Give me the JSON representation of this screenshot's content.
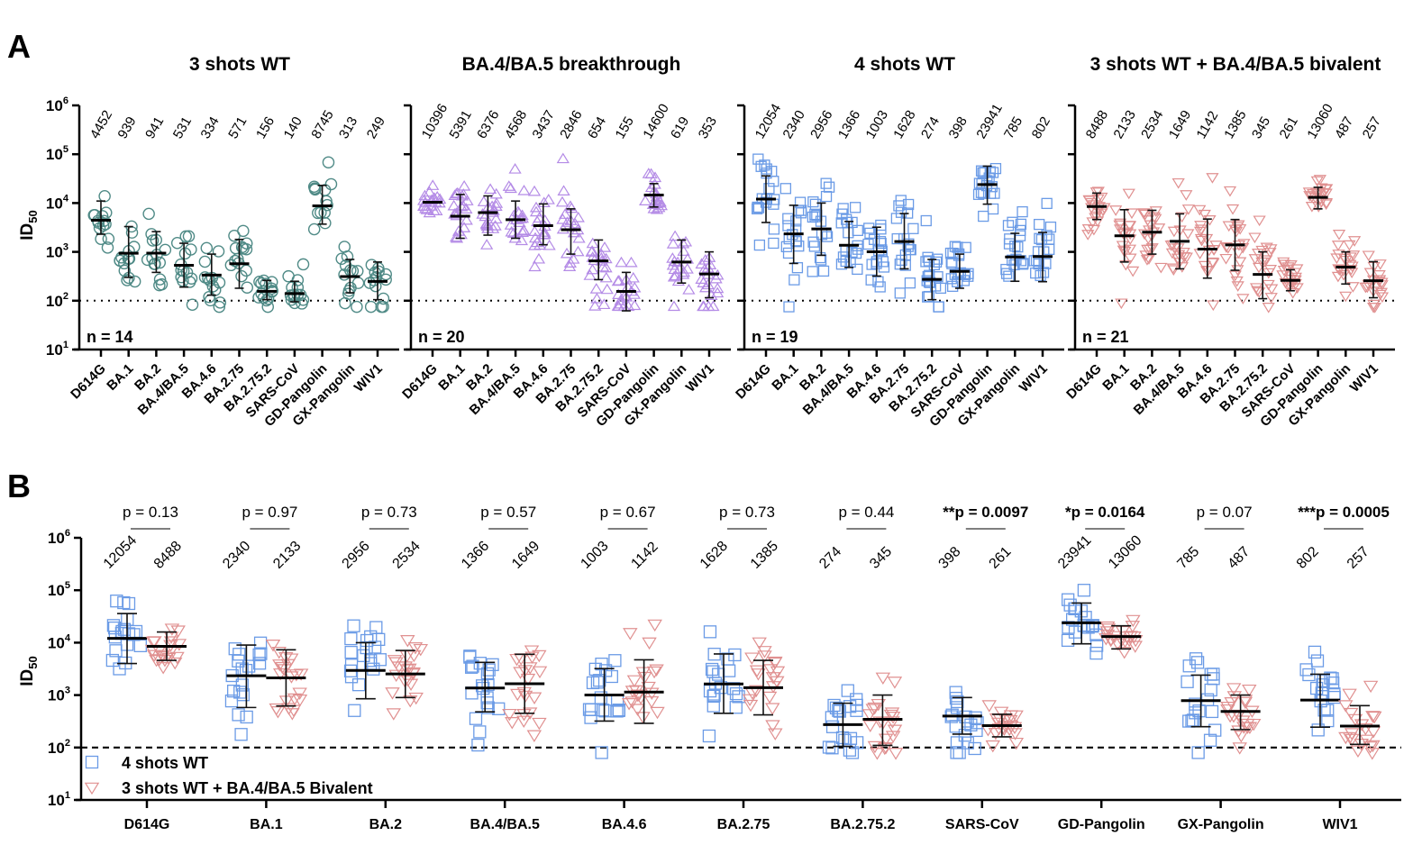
{
  "chart_data": [
    {
      "type": "scatter",
      "panel_label": "A",
      "ylabel": "ID50",
      "yscale": "log10",
      "ylim": [
        10,
        1000000
      ],
      "y_ticks": [
        "10^1",
        "10^2",
        "10^3",
        "10^4",
        "10^5",
        "10^6"
      ],
      "threshold_line": {
        "value": 100,
        "style": "dotted"
      },
      "categories": [
        "D614G",
        "BA.1",
        "BA.2",
        "BA.4/BA.5",
        "BA.4.6",
        "BA.2.75",
        "BA.2.75.2",
        "SARS-CoV",
        "GD-Pangolin",
        "GX-Pangolin",
        "WIV1"
      ],
      "subplots": [
        {
          "title": "3 shots WT",
          "n_label": "n = 14",
          "marker": "circle",
          "color": "#4f8a86",
          "geomean": [
            4452,
            939,
            941,
            531,
            334,
            571,
            156,
            140,
            8745,
            313,
            249
          ],
          "err_low": [
            2300,
            300,
            380,
            190,
            130,
            180,
            105,
            95,
            3700,
            145,
            105
          ],
          "err_high": [
            11000,
            3300,
            2600,
            1500,
            900,
            1800,
            260,
            250,
            23000,
            700,
            620
          ]
        },
        {
          "title": "BA.4/BA.5 breakthrough",
          "n_label": "n = 20",
          "marker": "triangle-up",
          "color": "#b48be6",
          "geomean": [
            10396,
            5391,
            6376,
            4568,
            3437,
            2846,
            654,
            155,
            14600,
            619,
            353
          ],
          "err_low": [
            10396,
            1900,
            2200,
            1900,
            1400,
            900,
            270,
            62,
            8300,
            230,
            115
          ],
          "err_high": [
            10396,
            15000,
            14000,
            11000,
            9600,
            7600,
            1750,
            380,
            25000,
            1750,
            1000
          ]
        },
        {
          "title": "4 shots WT",
          "n_label": "n = 19",
          "marker": "square",
          "color": "#6b9be6",
          "geomean": [
            12054,
            2340,
            2956,
            1366,
            1003,
            1628,
            274,
            398,
            23941,
            785,
            802
          ],
          "err_low": [
            4000,
            580,
            850,
            480,
            320,
            450,
            105,
            180,
            9500,
            250,
            245
          ],
          "err_high": [
            36000,
            9000,
            10000,
            4200,
            3200,
            6100,
            700,
            900,
            57000,
            2400,
            2500
          ]
        },
        {
          "title": "3 shots WT + BA.4/BA.5 bivalent",
          "n_label": "n = 21",
          "marker": "triangle-down",
          "color": "#e09090",
          "geomean": [
            8488,
            2133,
            2534,
            1649,
            1142,
            1385,
            345,
            261,
            13060,
            487,
            257
          ],
          "err_low": [
            4600,
            620,
            900,
            450,
            290,
            420,
            110,
            160,
            7600,
            220,
            115
          ],
          "err_high": [
            16000,
            7300,
            7100,
            6000,
            4700,
            4600,
            1000,
            430,
            21000,
            1000,
            630
          ]
        }
      ]
    },
    {
      "type": "scatter",
      "panel_label": "B",
      "ylabel": "ID50",
      "yscale": "log10",
      "ylim": [
        10,
        1000000
      ],
      "y_ticks": [
        "10^1",
        "10^2",
        "10^3",
        "10^4",
        "10^5",
        "10^6"
      ],
      "threshold_line": {
        "value": 100,
        "style": "dashed"
      },
      "categories": [
        "D614G",
        "BA.1",
        "BA.2",
        "BA.4/BA.5",
        "BA.4.6",
        "BA.2.75",
        "BA.2.75.2",
        "SARS-CoV",
        "GD-Pangolin",
        "GX-Pangolin",
        "WIV1"
      ],
      "legend": {
        "placement": "bottom-left",
        "entries": [
          {
            "label": "4 shots WT",
            "marker": "square",
            "color": "#6b9be6"
          },
          {
            "label": "3 shots WT + BA.4/BA.5 Bivalent",
            "marker": "triangle-down",
            "color": "#e09090"
          }
        ]
      },
      "series": [
        {
          "name": "4 shots WT",
          "geomean": [
            12054,
            2340,
            2956,
            1366,
            1003,
            1628,
            274,
            398,
            23941,
            785,
            802
          ],
          "err_low": [
            4000,
            580,
            850,
            480,
            320,
            450,
            105,
            180,
            9500,
            250,
            245
          ],
          "err_high": [
            36000,
            9000,
            10000,
            4200,
            3200,
            6100,
            700,
            900,
            57000,
            2400,
            2500
          ]
        },
        {
          "name": "3 shots WT + BA.4/BA.5 Bivalent",
          "geomean": [
            8488,
            2133,
            2534,
            1649,
            1142,
            1385,
            345,
            261,
            13060,
            487,
            257
          ],
          "err_low": [
            4600,
            620,
            900,
            450,
            290,
            420,
            110,
            160,
            7600,
            220,
            115
          ],
          "err_high": [
            16000,
            7300,
            7100,
            6000,
            4700,
            4600,
            1000,
            430,
            21000,
            1000,
            630
          ]
        }
      ],
      "comparisons": [
        {
          "prefix": "",
          "p": "p = 0.13",
          "bold": false
        },
        {
          "prefix": "",
          "p": "p = 0.97",
          "bold": false
        },
        {
          "prefix": "",
          "p": "p = 0.73",
          "bold": false
        },
        {
          "prefix": "",
          "p": "p = 0.57",
          "bold": false
        },
        {
          "prefix": "",
          "p": "p = 0.67",
          "bold": false
        },
        {
          "prefix": "",
          "p": "p = 0.73",
          "bold": false
        },
        {
          "prefix": "",
          "p": "p = 0.44",
          "bold": false
        },
        {
          "prefix": "**",
          "p": "p = 0.0097",
          "bold": true
        },
        {
          "prefix": "*",
          "p": "p = 0.0164",
          "bold": true
        },
        {
          "prefix": "",
          "p": "p = 0.07",
          "bold": false
        },
        {
          "prefix": "***",
          "p": "p = 0.0005",
          "bold": true
        }
      ]
    }
  ]
}
